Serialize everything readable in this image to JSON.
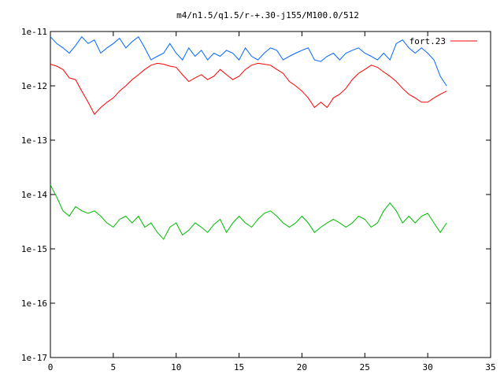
{
  "chart_data": {
    "type": "line",
    "title": "m4/n1.5/q1.5/r-+.30-j155/M100.0/512",
    "xlabel": "",
    "ylabel": "",
    "xlim": [
      0,
      35
    ],
    "ylim": [
      1e-17,
      1e-11
    ],
    "yscale": "log",
    "grid": false,
    "legend_position": "top-right",
    "x_ticks": [
      "0",
      "5",
      "10",
      "15",
      "20",
      "25",
      "30",
      "35"
    ],
    "x_tick_values": [
      0,
      5,
      10,
      15,
      20,
      25,
      30,
      35
    ],
    "y_ticks": [
      "1e-17",
      "1e-16",
      "1e-15",
      "1e-14",
      "1e-13",
      "1e-12",
      "1e-11"
    ],
    "y_tick_values": [
      1e-17,
      1e-16,
      1e-15,
      1e-14,
      1e-13,
      1e-12,
      1e-11
    ],
    "series": [
      {
        "name": "fort.23",
        "color": "#ff0000",
        "x": [
          0,
          0.5,
          1,
          1.5,
          2,
          2.5,
          3,
          3.5,
          4,
          4.5,
          5,
          5.5,
          6,
          6.5,
          7,
          7.5,
          8,
          8.5,
          9,
          9.5,
          10,
          10.5,
          11,
          11.5,
          12,
          12.5,
          13,
          13.5,
          14,
          14.5,
          15,
          15.5,
          16,
          16.5,
          17,
          17.5,
          18,
          18.5,
          19,
          19.5,
          20,
          20.5,
          21,
          21.5,
          22,
          22.5,
          23,
          23.5,
          24,
          24.5,
          25,
          25.5,
          26,
          26.5,
          27,
          27.5,
          28,
          28.5,
          29,
          29.5,
          30,
          30.5,
          31,
          31.5
        ],
        "y": [
          2.5e-12,
          2.3e-12,
          2e-12,
          1.4e-12,
          1.3e-12,
          8e-13,
          5e-13,
          3e-13,
          4e-13,
          5e-13,
          6e-13,
          8e-13,
          1e-12,
          1.3e-12,
          1.6e-12,
          2e-12,
          2.4e-12,
          2.6e-12,
          2.5e-12,
          2.3e-12,
          2.2e-12,
          1.6e-12,
          1.2e-12,
          1.4e-12,
          1.6e-12,
          1.3e-12,
          1.5e-12,
          2e-12,
          1.6e-12,
          1.3e-12,
          1.5e-12,
          2e-12,
          2.4e-12,
          2.6e-12,
          2.5e-12,
          2.4e-12,
          2e-12,
          1.7e-12,
          1.2e-12,
          1e-12,
          8e-13,
          6e-13,
          4e-13,
          5e-13,
          4e-13,
          6e-13,
          7e-13,
          9e-13,
          1.3e-12,
          1.7e-12,
          2e-12,
          2.4e-12,
          2.2e-12,
          1.8e-12,
          1.5e-12,
          1.2e-12,
          9e-13,
          7e-13,
          6e-13,
          5e-13,
          5e-13,
          6e-13,
          7e-13,
          8e-13
        ]
      },
      {
        "color": "#0066ff",
        "x": [
          0,
          0.5,
          1,
          1.5,
          2,
          2.5,
          3,
          3.5,
          4,
          4.5,
          5,
          5.5,
          6,
          6.5,
          7,
          7.5,
          8,
          8.5,
          9,
          9.5,
          10,
          10.5,
          11,
          11.5,
          12,
          12.5,
          13,
          13.5,
          14,
          14.5,
          15,
          15.5,
          16,
          16.5,
          17,
          17.5,
          18,
          18.5,
          19,
          19.5,
          20,
          20.5,
          21,
          21.5,
          22,
          22.5,
          23,
          23.5,
          24,
          24.5,
          25,
          25.5,
          26,
          26.5,
          27,
          27.5,
          28,
          28.5,
          29,
          29.5,
          30,
          30.5,
          31,
          31.5
        ],
        "y": [
          8e-12,
          6e-12,
          5e-12,
          4e-12,
          5.5e-12,
          8e-12,
          6e-12,
          7e-12,
          4e-12,
          5e-12,
          6e-12,
          7.5e-12,
          5e-12,
          6.5e-12,
          8e-12,
          5e-12,
          3e-12,
          3.5e-12,
          4e-12,
          6e-12,
          4e-12,
          3e-12,
          5e-12,
          3.5e-12,
          4.5e-12,
          3e-12,
          4e-12,
          3.5e-12,
          4.5e-12,
          4e-12,
          3e-12,
          5e-12,
          3.5e-12,
          3e-12,
          4e-12,
          5e-12,
          4.5e-12,
          3e-12,
          3.5e-12,
          4e-12,
          4.5e-12,
          5e-12,
          3e-12,
          2.8e-12,
          3.5e-12,
          4e-12,
          3e-12,
          4e-12,
          4.5e-12,
          5e-12,
          4e-12,
          3.5e-12,
          3e-12,
          4e-12,
          3e-12,
          6e-12,
          7e-12,
          5e-12,
          4e-12,
          5e-12,
          4e-12,
          3e-12,
          1.5e-12,
          1e-12
        ]
      },
      {
        "color": "#00bb00",
        "x": [
          0,
          0.5,
          1,
          1.5,
          2,
          2.5,
          3,
          3.5,
          4,
          4.5,
          5,
          5.5,
          6,
          6.5,
          7,
          7.5,
          8,
          8.5,
          9,
          9.5,
          10,
          10.5,
          11,
          11.5,
          12,
          12.5,
          13,
          13.5,
          14,
          14.5,
          15,
          15.5,
          16,
          16.5,
          17,
          17.5,
          18,
          18.5,
          19,
          19.5,
          20,
          20.5,
          21,
          21.5,
          22,
          22.5,
          23,
          23.5,
          24,
          24.5,
          25,
          25.5,
          26,
          26.5,
          27,
          27.5,
          28,
          28.5,
          29,
          29.5,
          30,
          30.5,
          31,
          31.5
        ],
        "y": [
          1.5e-14,
          9e-15,
          5e-15,
          4e-15,
          6e-15,
          5e-15,
          4.5e-15,
          5e-15,
          4e-15,
          3e-15,
          2.5e-15,
          3.5e-15,
          4e-15,
          3e-15,
          4e-15,
          2.5e-15,
          3e-15,
          2e-15,
          1.5e-15,
          2.5e-15,
          3e-15,
          1.8e-15,
          2.2e-15,
          3e-15,
          2.5e-15,
          2e-15,
          2.8e-15,
          3.5e-15,
          2e-15,
          3e-15,
          4e-15,
          3e-15,
          2.5e-15,
          3.5e-15,
          4.5e-15,
          5e-15,
          4e-15,
          3e-15,
          2.5e-15,
          3e-15,
          4e-15,
          3e-15,
          2e-15,
          2.5e-15,
          3e-15,
          3.5e-15,
          3e-15,
          2.5e-15,
          3e-15,
          4e-15,
          3.5e-15,
          2.5e-15,
          3e-15,
          5e-15,
          7e-15,
          5e-15,
          3e-15,
          4e-15,
          3e-15,
          4e-15,
          4.5e-15,
          3e-15,
          2e-15,
          3e-15
        ]
      }
    ]
  }
}
